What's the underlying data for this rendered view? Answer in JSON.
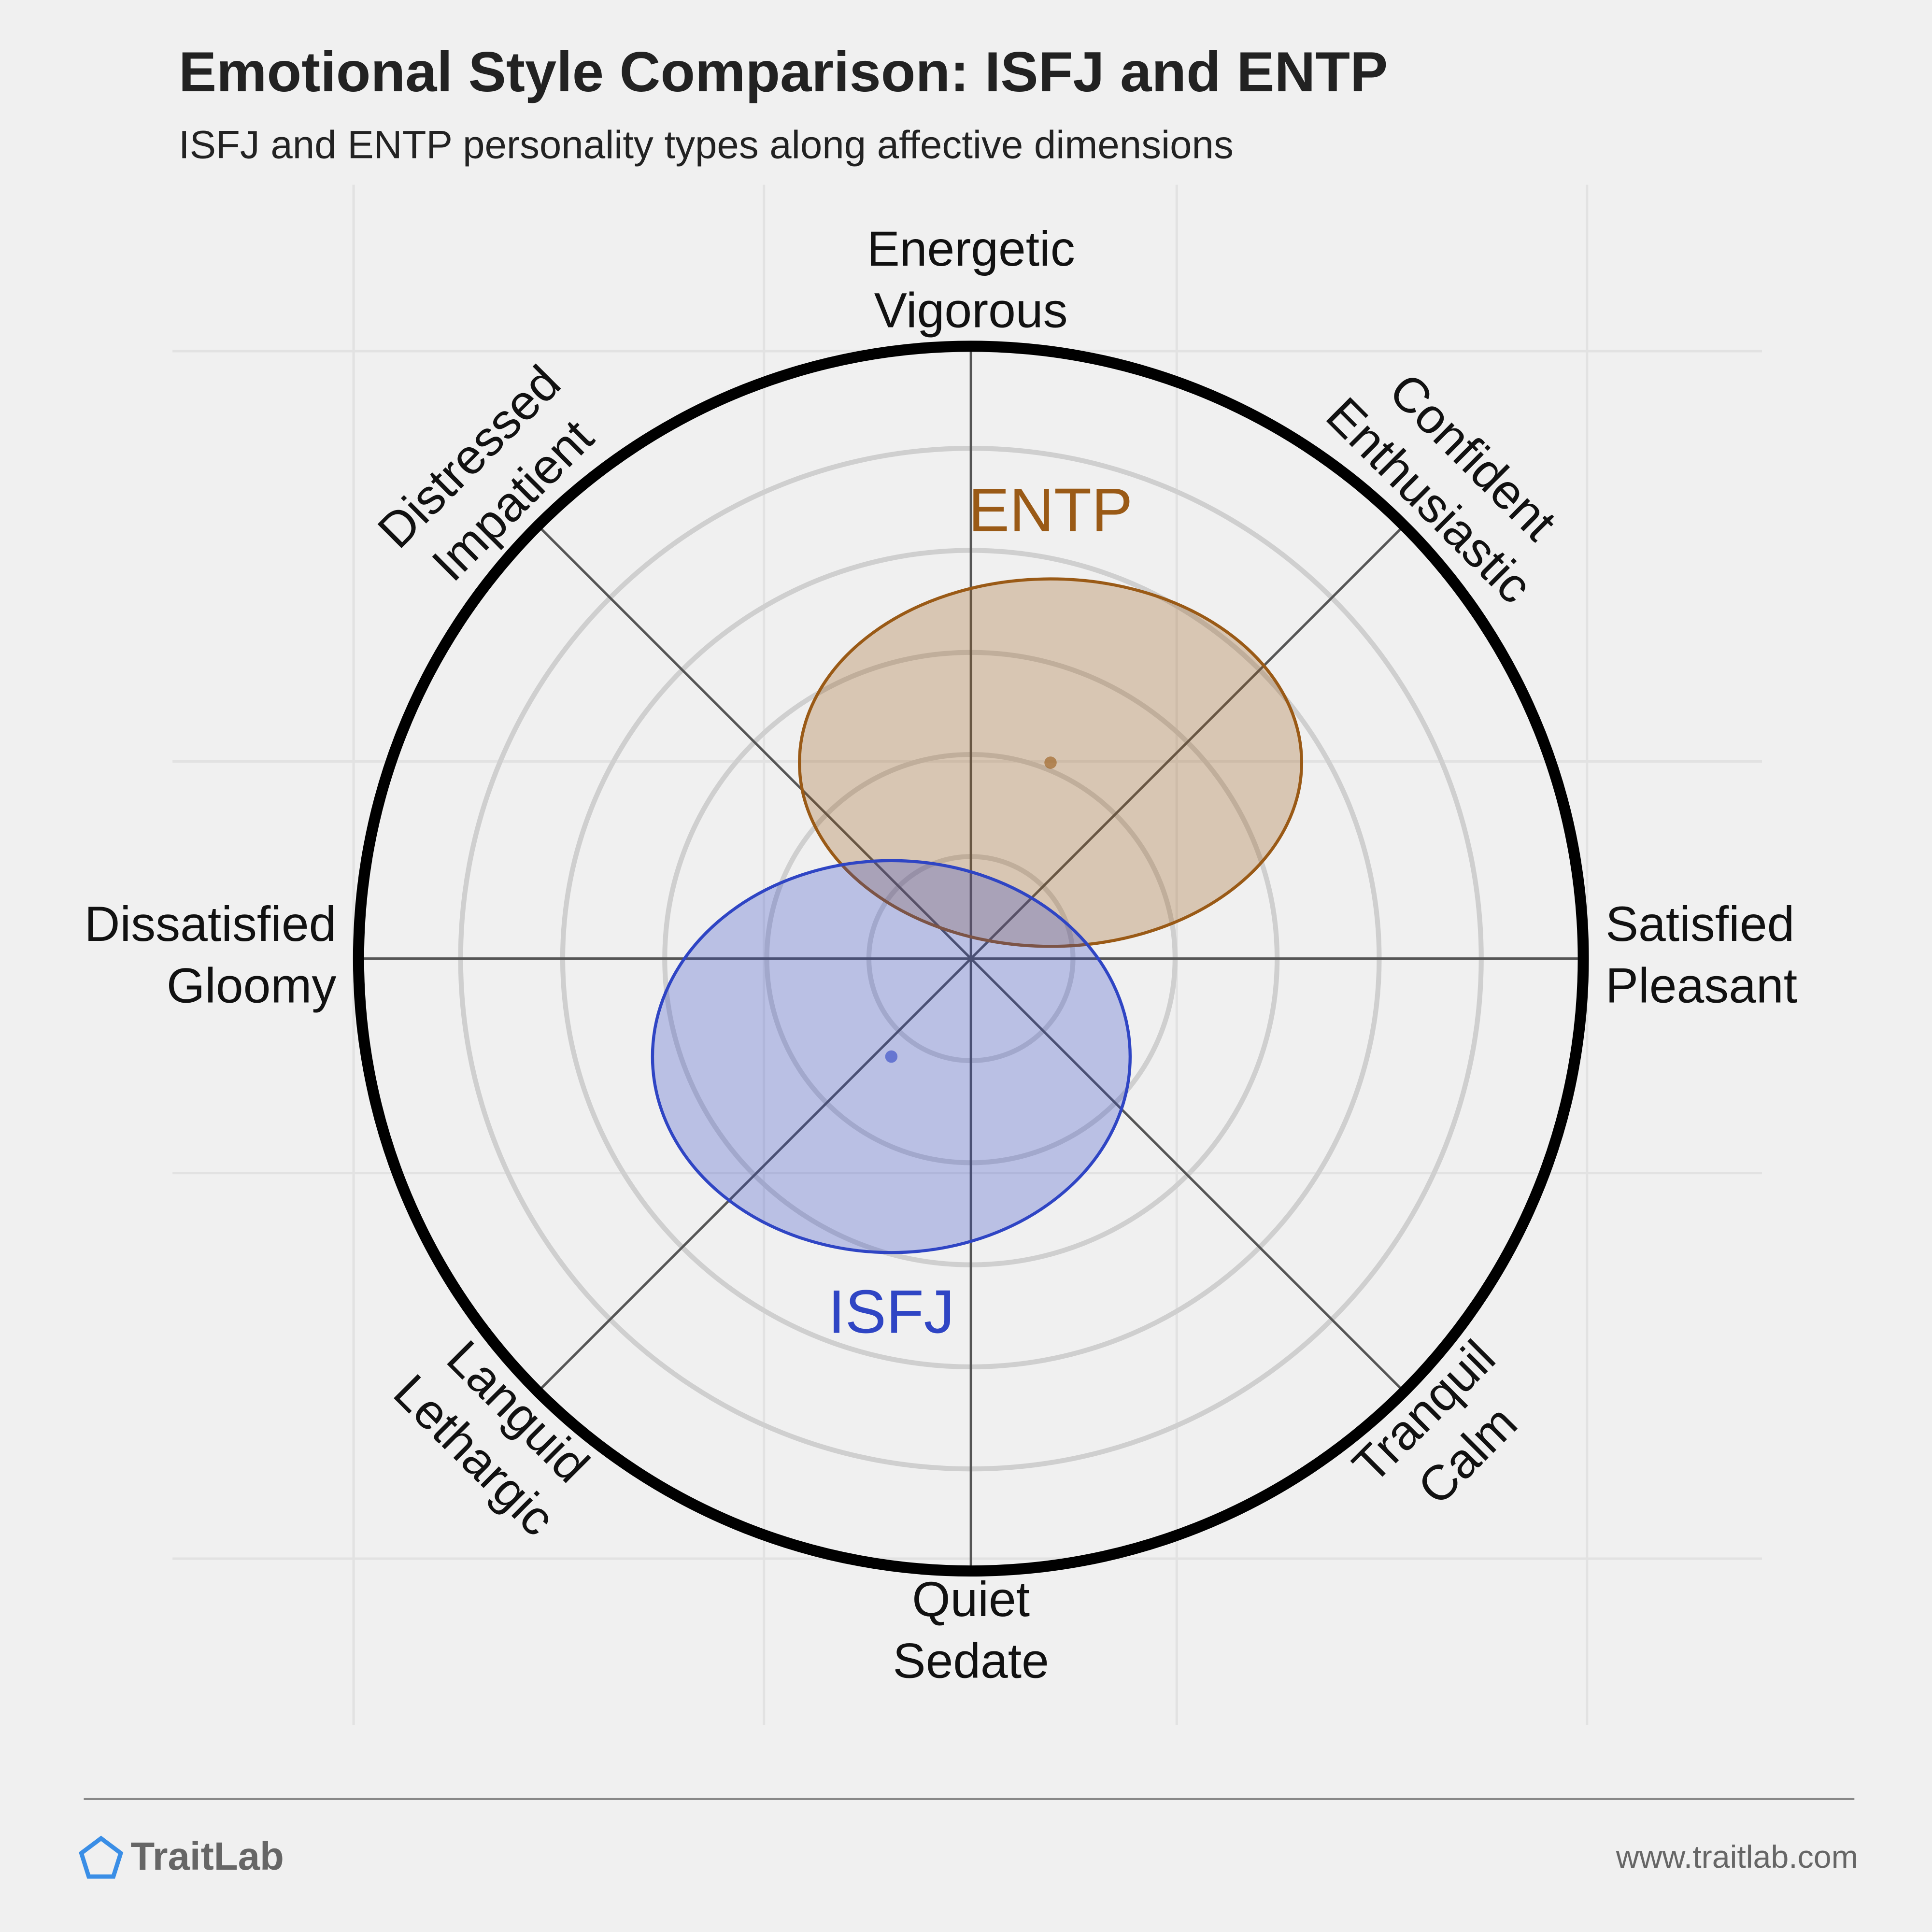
{
  "chart_data": {
    "type": "circumplex",
    "title": "Emotional Style Comparison: ISFJ and ENTP",
    "subtitle": "ISFJ and ENTP personality types along affective dimensions",
    "axes": [
      {
        "lines": [
          "Energetic",
          "Vigorous"
        ]
      },
      {
        "lines": [
          "Confident",
          "Enthusiastic"
        ]
      },
      {
        "lines": [
          "Satisfied",
          "Pleasant"
        ]
      },
      {
        "lines": [
          "Tranquil",
          "Calm"
        ]
      },
      {
        "lines": [
          "Quiet",
          "Sedate"
        ]
      },
      {
        "lines": [
          "Languid",
          "Lethargic"
        ]
      },
      {
        "lines": [
          "Dissatisfied",
          "Gloomy"
        ]
      },
      {
        "lines": [
          "Distressed",
          "Impatient"
        ]
      }
    ],
    "xlim": [
      -1,
      1
    ],
    "ylim": [
      -1,
      1
    ],
    "series": [
      {
        "name": "ENTP",
        "color": "#9a5a16",
        "x": 0.13,
        "y": 0.32,
        "rx": 0.41,
        "ry": 0.3
      },
      {
        "name": "ISFJ",
        "color": "#2f45c4",
        "x": -0.13,
        "y": -0.16,
        "rx": 0.39,
        "ry": 0.32
      }
    ]
  },
  "footer": {
    "brand": "TraitLab",
    "url": "www.traitlab.com"
  }
}
